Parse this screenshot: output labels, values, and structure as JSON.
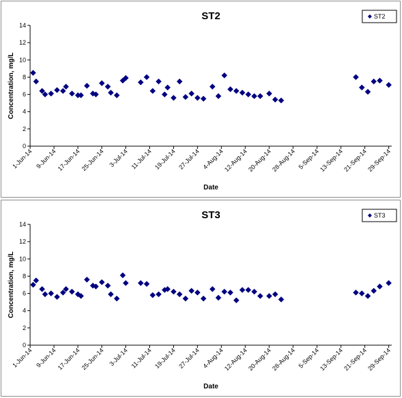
{
  "chart_data": [
    {
      "type": "scatter",
      "title": "ST2",
      "xlabel": "Date",
      "ylabel": "Concentration, mg/L",
      "ylim": [
        0,
        14
      ],
      "yticks": [
        0,
        2,
        4,
        6,
        8,
        10,
        12,
        14
      ],
      "xlim": [
        "2014-06-01",
        "2014-09-30"
      ],
      "xtick_labels": [
        "1-Jun-14",
        "9-Jun-14",
        "17-Jun-14",
        "25-Jun-14",
        "3-Jul-14",
        "11-Jul-14",
        "19-Jul-14",
        "27-Jul-14",
        "4-Aug-14",
        "12-Aug-14",
        "20-Aug-14",
        "28-Aug-14",
        "5-Sep-14",
        "13-Sep-14",
        "21-Sep-14",
        "29-Sep-14"
      ],
      "xtick_dates": [
        "2014-06-01",
        "2014-06-09",
        "2014-06-17",
        "2014-06-25",
        "2014-07-03",
        "2014-07-11",
        "2014-07-19",
        "2014-07-27",
        "2014-08-04",
        "2014-08-12",
        "2014-08-20",
        "2014-08-28",
        "2014-09-05",
        "2014-09-13",
        "2014-09-21",
        "2014-09-29"
      ],
      "grid": false,
      "legend_position": "top-right",
      "marker": "diamond",
      "color": "#000080",
      "series": [
        {
          "name": "ST2",
          "points": [
            {
              "x": "2014-06-02",
              "y": 8.5
            },
            {
              "x": "2014-06-03",
              "y": 7.5
            },
            {
              "x": "2014-06-05",
              "y": 6.4
            },
            {
              "x": "2014-06-06",
              "y": 6.0
            },
            {
              "x": "2014-06-08",
              "y": 6.1
            },
            {
              "x": "2014-06-10",
              "y": 6.5
            },
            {
              "x": "2014-06-12",
              "y": 6.4
            },
            {
              "x": "2014-06-13",
              "y": 6.9
            },
            {
              "x": "2014-06-15",
              "y": 6.1
            },
            {
              "x": "2014-06-17",
              "y": 5.9
            },
            {
              "x": "2014-06-18",
              "y": 5.9
            },
            {
              "x": "2014-06-20",
              "y": 7.0
            },
            {
              "x": "2014-06-22",
              "y": 6.1
            },
            {
              "x": "2014-06-23",
              "y": 6.0
            },
            {
              "x": "2014-06-25",
              "y": 7.3
            },
            {
              "x": "2014-06-27",
              "y": 6.9
            },
            {
              "x": "2014-06-28",
              "y": 6.2
            },
            {
              "x": "2014-06-30",
              "y": 5.9
            },
            {
              "x": "2014-07-02",
              "y": 7.6
            },
            {
              "x": "2014-07-03",
              "y": 7.9
            },
            {
              "x": "2014-07-08",
              "y": 7.4
            },
            {
              "x": "2014-07-10",
              "y": 8.0
            },
            {
              "x": "2014-07-12",
              "y": 6.4
            },
            {
              "x": "2014-07-14",
              "y": 7.5
            },
            {
              "x": "2014-07-16",
              "y": 6.0
            },
            {
              "x": "2014-07-17",
              "y": 6.8
            },
            {
              "x": "2014-07-19",
              "y": 5.6
            },
            {
              "x": "2014-07-21",
              "y": 7.5
            },
            {
              "x": "2014-07-23",
              "y": 5.7
            },
            {
              "x": "2014-07-25",
              "y": 6.1
            },
            {
              "x": "2014-07-27",
              "y": 5.6
            },
            {
              "x": "2014-07-29",
              "y": 5.5
            },
            {
              "x": "2014-08-01",
              "y": 6.9
            },
            {
              "x": "2014-08-03",
              "y": 5.8
            },
            {
              "x": "2014-08-05",
              "y": 8.2
            },
            {
              "x": "2014-08-07",
              "y": 6.6
            },
            {
              "x": "2014-08-09",
              "y": 6.4
            },
            {
              "x": "2014-08-11",
              "y": 6.2
            },
            {
              "x": "2014-08-13",
              "y": 6.0
            },
            {
              "x": "2014-08-15",
              "y": 5.8
            },
            {
              "x": "2014-08-17",
              "y": 5.8
            },
            {
              "x": "2014-08-20",
              "y": 6.1
            },
            {
              "x": "2014-08-22",
              "y": 5.4
            },
            {
              "x": "2014-08-24",
              "y": 5.3
            },
            {
              "x": "2014-09-18",
              "y": 8.0
            },
            {
              "x": "2014-09-20",
              "y": 6.8
            },
            {
              "x": "2014-09-22",
              "y": 6.3
            },
            {
              "x": "2014-09-24",
              "y": 7.5
            },
            {
              "x": "2014-09-26",
              "y": 7.6
            },
            {
              "x": "2014-09-29",
              "y": 7.1
            }
          ]
        }
      ]
    },
    {
      "type": "scatter",
      "title": "ST3",
      "xlabel": "Date",
      "ylabel": "Concentration, mg/L",
      "ylim": [
        0,
        14
      ],
      "yticks": [
        0,
        2,
        4,
        6,
        8,
        10,
        12,
        14
      ],
      "xlim": [
        "2014-06-01",
        "2014-09-30"
      ],
      "xtick_labels": [
        "1-Jun-14",
        "9-Jun-14",
        "17-Jun-14",
        "25-Jun-14",
        "3-Jul-14",
        "11-Jul-14",
        "19-Jul-14",
        "27-Jul-14",
        "4-Aug-14",
        "12-Aug-14",
        "20-Aug-14",
        "28-Aug-14",
        "5-Sep-14",
        "13-Sep-14",
        "21-Sep-14",
        "29-Sep-14"
      ],
      "xtick_dates": [
        "2014-06-01",
        "2014-06-09",
        "2014-06-17",
        "2014-06-25",
        "2014-07-03",
        "2014-07-11",
        "2014-07-19",
        "2014-07-27",
        "2014-08-04",
        "2014-08-12",
        "2014-08-20",
        "2014-08-28",
        "2014-09-05",
        "2014-09-13",
        "2014-09-21",
        "2014-09-29"
      ],
      "grid": false,
      "legend_position": "top-right",
      "marker": "diamond",
      "color": "#000080",
      "series": [
        {
          "name": "ST3",
          "points": [
            {
              "x": "2014-06-02",
              "y": 7.0
            },
            {
              "x": "2014-06-03",
              "y": 7.5
            },
            {
              "x": "2014-06-05",
              "y": 6.5
            },
            {
              "x": "2014-06-06",
              "y": 5.9
            },
            {
              "x": "2014-06-08",
              "y": 6.0
            },
            {
              "x": "2014-06-10",
              "y": 5.6
            },
            {
              "x": "2014-06-12",
              "y": 6.1
            },
            {
              "x": "2014-06-13",
              "y": 6.5
            },
            {
              "x": "2014-06-15",
              "y": 6.2
            },
            {
              "x": "2014-06-17",
              "y": 5.9
            },
            {
              "x": "2014-06-18",
              "y": 5.7
            },
            {
              "x": "2014-06-20",
              "y": 7.6
            },
            {
              "x": "2014-06-22",
              "y": 6.9
            },
            {
              "x": "2014-06-23",
              "y": 6.8
            },
            {
              "x": "2014-06-25",
              "y": 7.3
            },
            {
              "x": "2014-06-27",
              "y": 6.9
            },
            {
              "x": "2014-06-28",
              "y": 5.9
            },
            {
              "x": "2014-06-30",
              "y": 5.4
            },
            {
              "x": "2014-07-02",
              "y": 8.1
            },
            {
              "x": "2014-07-03",
              "y": 7.2
            },
            {
              "x": "2014-07-08",
              "y": 7.2
            },
            {
              "x": "2014-07-10",
              "y": 7.1
            },
            {
              "x": "2014-07-12",
              "y": 5.8
            },
            {
              "x": "2014-07-14",
              "y": 5.9
            },
            {
              "x": "2014-07-16",
              "y": 6.4
            },
            {
              "x": "2014-07-17",
              "y": 6.5
            },
            {
              "x": "2014-07-19",
              "y": 6.2
            },
            {
              "x": "2014-07-21",
              "y": 5.9
            },
            {
              "x": "2014-07-23",
              "y": 5.4
            },
            {
              "x": "2014-07-25",
              "y": 6.3
            },
            {
              "x": "2014-07-27",
              "y": 6.1
            },
            {
              "x": "2014-07-29",
              "y": 5.4
            },
            {
              "x": "2014-08-01",
              "y": 6.5
            },
            {
              "x": "2014-08-03",
              "y": 5.5
            },
            {
              "x": "2014-08-05",
              "y": 6.2
            },
            {
              "x": "2014-08-07",
              "y": 6.1
            },
            {
              "x": "2014-08-09",
              "y": 5.2
            },
            {
              "x": "2014-08-11",
              "y": 6.4
            },
            {
              "x": "2014-08-13",
              "y": 6.4
            },
            {
              "x": "2014-08-15",
              "y": 6.2
            },
            {
              "x": "2014-08-17",
              "y": 5.7
            },
            {
              "x": "2014-08-20",
              "y": 5.7
            },
            {
              "x": "2014-08-22",
              "y": 5.9
            },
            {
              "x": "2014-08-24",
              "y": 5.3
            },
            {
              "x": "2014-09-18",
              "y": 6.1
            },
            {
              "x": "2014-09-20",
              "y": 6.0
            },
            {
              "x": "2014-09-22",
              "y": 5.7
            },
            {
              "x": "2014-09-24",
              "y": 6.3
            },
            {
              "x": "2014-09-26",
              "y": 6.8
            },
            {
              "x": "2014-09-29",
              "y": 7.2
            }
          ]
        }
      ]
    }
  ]
}
